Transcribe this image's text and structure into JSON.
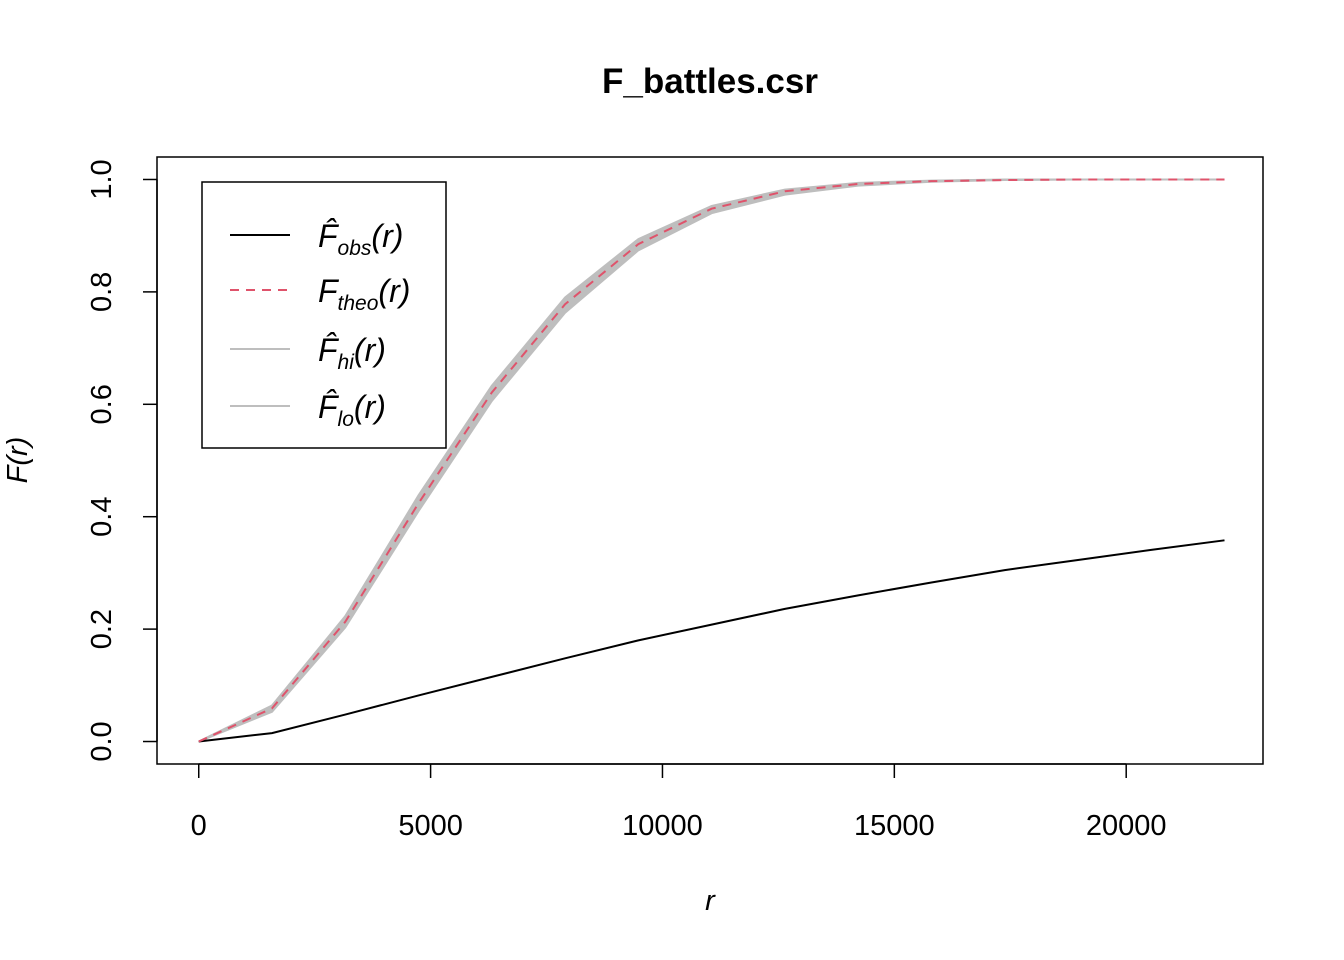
{
  "chart_data": {
    "type": "line",
    "title": "F_battles.csr",
    "xlabel": "r",
    "ylabel": "F(r)",
    "xlim": [
      -900,
      22950
    ],
    "ylim": [
      -0.04,
      1.04
    ],
    "xticks": [
      0,
      5000,
      10000,
      15000,
      20000
    ],
    "xtick_labels": [
      "0",
      "5000",
      "10000",
      "15000",
      "20000"
    ],
    "yticks": [
      0.0,
      0.2,
      0.4,
      0.6,
      0.8,
      1.0
    ],
    "ytick_labels": [
      "0.0",
      "0.2",
      "0.4",
      "0.6",
      "0.8",
      "1.0"
    ],
    "grid": false,
    "legend_position": "top-left",
    "x": [
      0,
      1580,
      3160,
      4740,
      6320,
      7900,
      9480,
      11060,
      12640,
      14220,
      15800,
      17380,
      18960,
      20540,
      22120
    ],
    "series": [
      {
        "key": "obs",
        "name": "F̂obs(r)",
        "main": "F̂",
        "sub": "obs",
        "suffix": "(r)",
        "style": "solid",
        "color": "#000000",
        "values": [
          0.0,
          0.015,
          0.048,
          0.082,
          0.115,
          0.148,
          0.18,
          0.208,
          0.236,
          0.26,
          0.283,
          0.305,
          0.323,
          0.341,
          0.358
        ]
      },
      {
        "key": "theo",
        "name": "Ftheo(r)",
        "main": "F",
        "sub": "theo",
        "suffix": "(r)",
        "style": "dashed",
        "color": "#DF536B",
        "values": [
          0.0,
          0.059,
          0.213,
          0.424,
          0.621,
          0.778,
          0.885,
          0.948,
          0.979,
          0.992,
          0.997,
          0.999,
          1.0,
          1.0,
          1.0
        ]
      },
      {
        "key": "hi",
        "name": "F̂hi(r)",
        "main": "F̂",
        "sub": "hi",
        "suffix": "(r)",
        "style": "solid",
        "color": "#BEBEBE",
        "values": [
          0.0,
          0.064,
          0.223,
          0.438,
          0.633,
          0.79,
          0.894,
          0.953,
          0.982,
          0.994,
          0.998,
          1.0,
          1.0,
          1.0,
          1.0
        ]
      },
      {
        "key": "lo",
        "name": "F̂lo(r)",
        "main": "F̂",
        "sub": "lo",
        "suffix": "(r)",
        "style": "solid",
        "color": "#BEBEBE",
        "values": [
          0.0,
          0.053,
          0.203,
          0.41,
          0.606,
          0.763,
          0.874,
          0.94,
          0.973,
          0.989,
          0.996,
          0.999,
          1.0,
          1.0,
          1.0
        ]
      }
    ]
  }
}
